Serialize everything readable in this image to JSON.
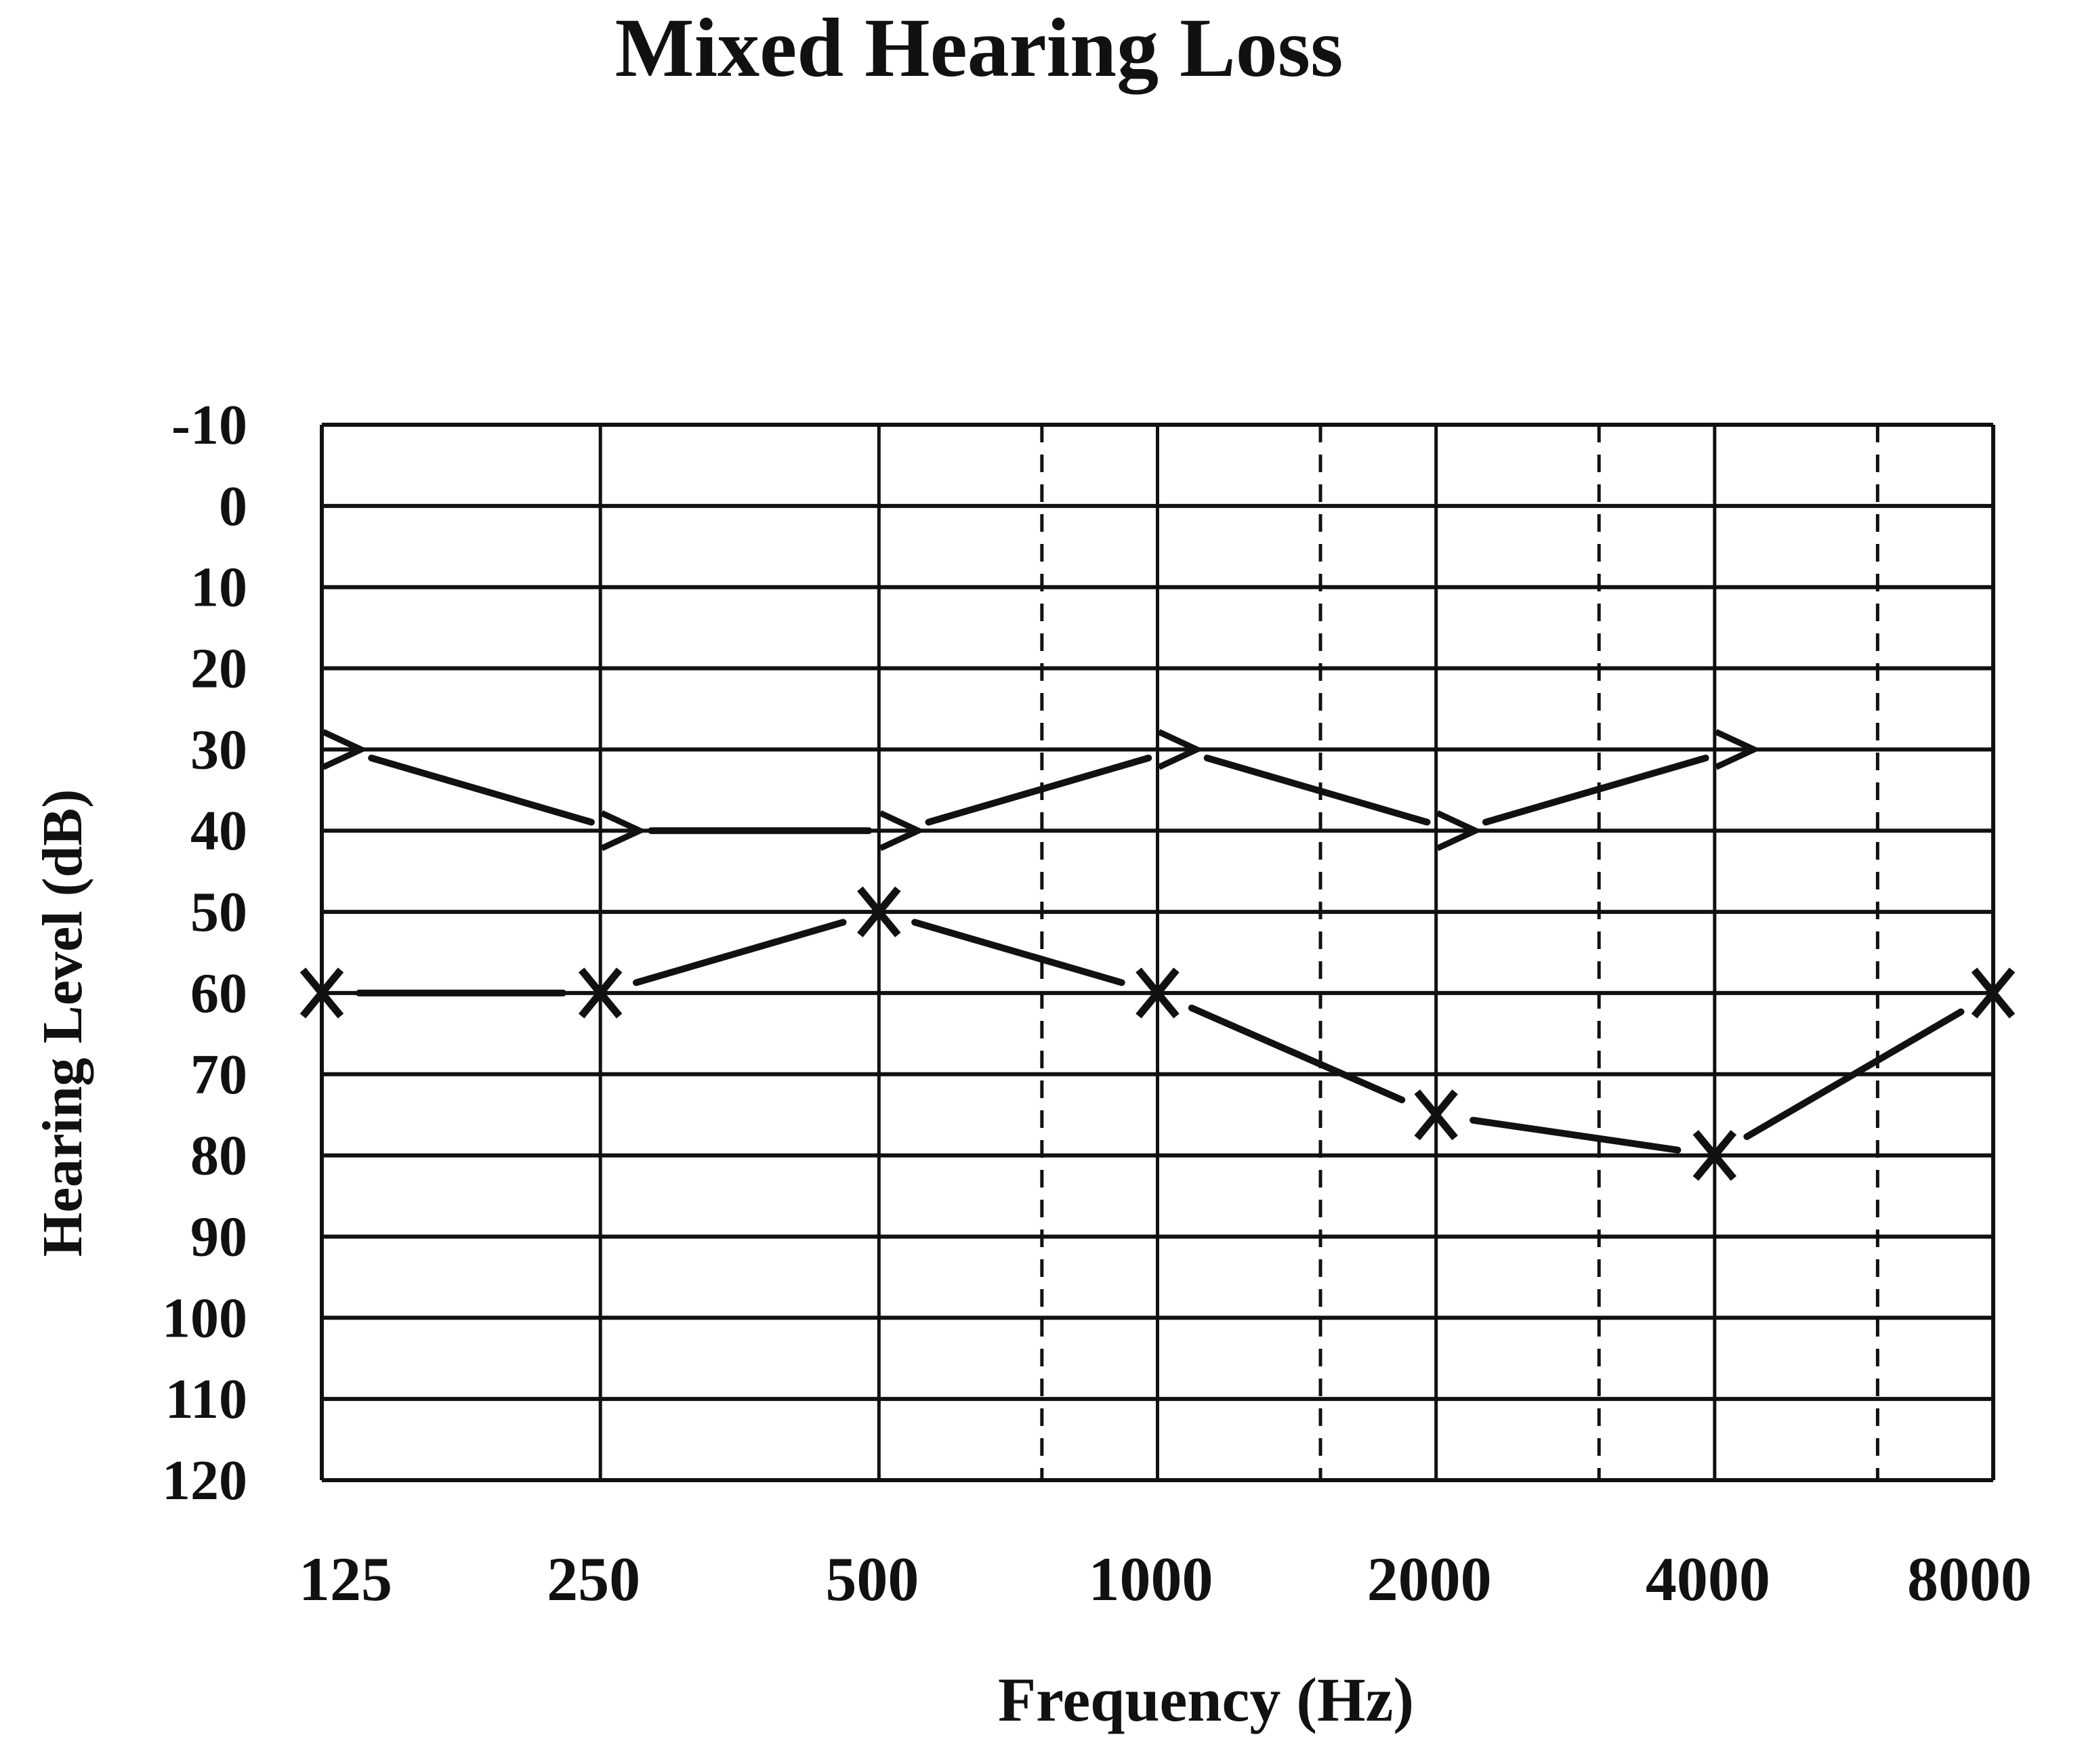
{
  "chart_data": {
    "type": "line",
    "title": "Mixed Hearing Loss",
    "xlabel": "Frequency (Hz)",
    "ylabel": "Hearing Level (dB)",
    "x_scale": "log2",
    "y_inverted": true,
    "grid": true,
    "categories": [
      "125",
      "250",
      "500",
      "1000",
      "2000",
      "4000",
      "8000"
    ],
    "x_ticks": [
      125,
      250,
      500,
      1000,
      2000,
      4000,
      8000
    ],
    "x_dashed_gridlines": [
      750,
      1500,
      3000,
      6000
    ],
    "y_ticks": [
      "-10",
      "0",
      "10",
      "20",
      "30",
      "40",
      "50",
      "60",
      "70",
      "80",
      "90",
      "100",
      "110",
      "120"
    ],
    "ylim": [
      -10,
      120
    ],
    "series": [
      {
        "marker": "bone-conduction-right-bracket",
        "symbol": ">",
        "color": "#111111",
        "x": [
          125,
          250,
          500,
          1000,
          2000,
          4000
        ],
        "values": [
          30,
          40,
          40,
          30,
          40,
          30
        ]
      },
      {
        "marker": "x",
        "symbol": "X",
        "color": "#111111",
        "x": [
          125,
          250,
          500,
          1000,
          2000,
          4000,
          8000
        ],
        "values": [
          60,
          60,
          50,
          60,
          75,
          80,
          60
        ]
      }
    ]
  }
}
